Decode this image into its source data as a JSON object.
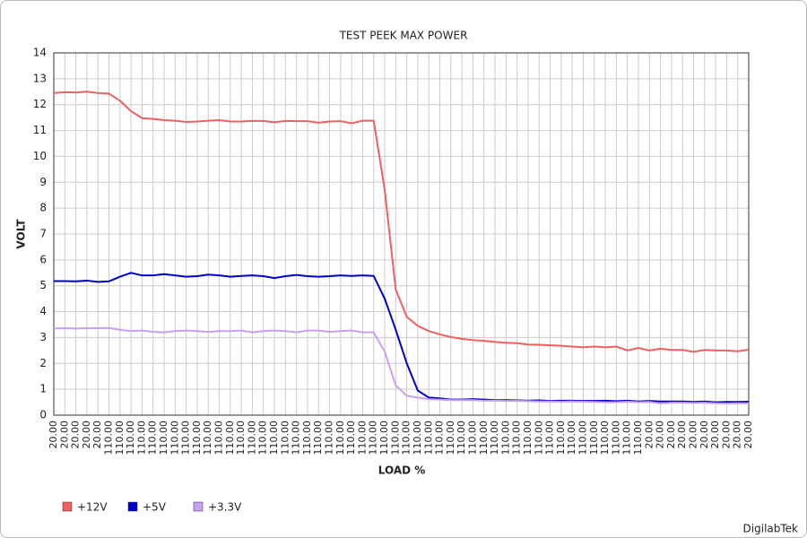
{
  "chart_data": {
    "type": "line",
    "title": "TEST PEEK MAX POWER",
    "x_label": "LOAD %",
    "y_label": "VOLT",
    "watermark": "DigilabTek",
    "categories": [
      "20.00",
      "20.00",
      "20.00",
      "20.00",
      "20.00",
      "110.00",
      "110.00",
      "110.00",
      "110.00",
      "110.00",
      "110.00",
      "110.00",
      "110.00",
      "110.00",
      "110.00",
      "110.00",
      "110.00",
      "110.00",
      "110.00",
      "110.00",
      "110.00",
      "110.00",
      "110.00",
      "110.00",
      "110.00",
      "110.00",
      "110.00",
      "110.00",
      "110.00",
      "110.00",
      "110.00",
      "110.00",
      "110.00",
      "110.00",
      "110.00",
      "110.00",
      "110.00",
      "110.00",
      "110.00",
      "110.00",
      "110.00",
      "110.00",
      "110.00",
      "110.00",
      "110.00",
      "110.00",
      "110.00",
      "110.00",
      "110.00",
      "110.00",
      "110.00",
      "110.00",
      "110.00",
      "110.00",
      "20.00",
      "20.00",
      "20.00",
      "20.00",
      "20.00",
      "20.00",
      "20.00",
      "20.00",
      "20.00",
      "20.00"
    ],
    "series": [
      {
        "name": "+12V",
        "color": "#f06060",
        "values": [
          12.45,
          12.48,
          12.47,
          12.5,
          12.45,
          12.43,
          12.15,
          11.75,
          11.48,
          11.45,
          11.4,
          11.38,
          11.33,
          11.35,
          11.38,
          11.4,
          11.35,
          11.35,
          11.37,
          11.37,
          11.32,
          11.37,
          11.36,
          11.36,
          11.3,
          11.35,
          11.36,
          11.28,
          11.38,
          11.38,
          8.7,
          4.85,
          3.8,
          3.45,
          3.25,
          3.12,
          3.02,
          2.95,
          2.9,
          2.87,
          2.83,
          2.8,
          2.78,
          2.73,
          2.72,
          2.7,
          2.68,
          2.65,
          2.62,
          2.65,
          2.62,
          2.65,
          2.5,
          2.6,
          2.5,
          2.57,
          2.52,
          2.52,
          2.45,
          2.52,
          2.5,
          2.5,
          2.47,
          2.53
        ]
      },
      {
        "name": "+5V",
        "color": "#0000cc",
        "values": [
          5.18,
          5.18,
          5.17,
          5.2,
          5.15,
          5.17,
          5.35,
          5.5,
          5.4,
          5.4,
          5.45,
          5.4,
          5.35,
          5.37,
          5.43,
          5.4,
          5.35,
          5.38,
          5.4,
          5.37,
          5.3,
          5.37,
          5.42,
          5.37,
          5.35,
          5.37,
          5.4,
          5.38,
          5.4,
          5.38,
          4.5,
          3.3,
          2.0,
          0.95,
          0.68,
          0.65,
          0.6,
          0.6,
          0.62,
          0.6,
          0.58,
          0.58,
          0.57,
          0.56,
          0.57,
          0.55,
          0.56,
          0.56,
          0.55,
          0.55,
          0.56,
          0.54,
          0.56,
          0.53,
          0.55,
          0.53,
          0.53,
          0.53,
          0.51,
          0.53,
          0.5,
          0.51,
          0.51,
          0.52
        ]
      },
      {
        "name": "+3.3V",
        "color": "#c8a0f0",
        "values": [
          3.35,
          3.36,
          3.35,
          3.36,
          3.36,
          3.37,
          3.3,
          3.25,
          3.27,
          3.22,
          3.2,
          3.25,
          3.27,
          3.25,
          3.22,
          3.25,
          3.25,
          3.27,
          3.2,
          3.25,
          3.27,
          3.25,
          3.2,
          3.27,
          3.27,
          3.22,
          3.25,
          3.27,
          3.2,
          3.2,
          2.45,
          1.15,
          0.75,
          0.68,
          0.62,
          0.6,
          0.58,
          0.58,
          0.58,
          0.56,
          0.56,
          0.55,
          0.55,
          0.54,
          0.53,
          0.53,
          0.52,
          0.53,
          0.52,
          0.51,
          0.5,
          0.5,
          0.52,
          0.5,
          0.51,
          0.45,
          0.48,
          0.48,
          0.47,
          0.48,
          0.46,
          0.45,
          0.46,
          0.46
        ]
      }
    ],
    "ylim": [
      0,
      14
    ],
    "yticks": [
      0,
      1,
      2,
      3,
      4,
      5,
      6,
      7,
      8,
      9,
      10,
      11,
      12,
      13,
      14
    ],
    "grid": true,
    "legend": "bottom-left"
  }
}
